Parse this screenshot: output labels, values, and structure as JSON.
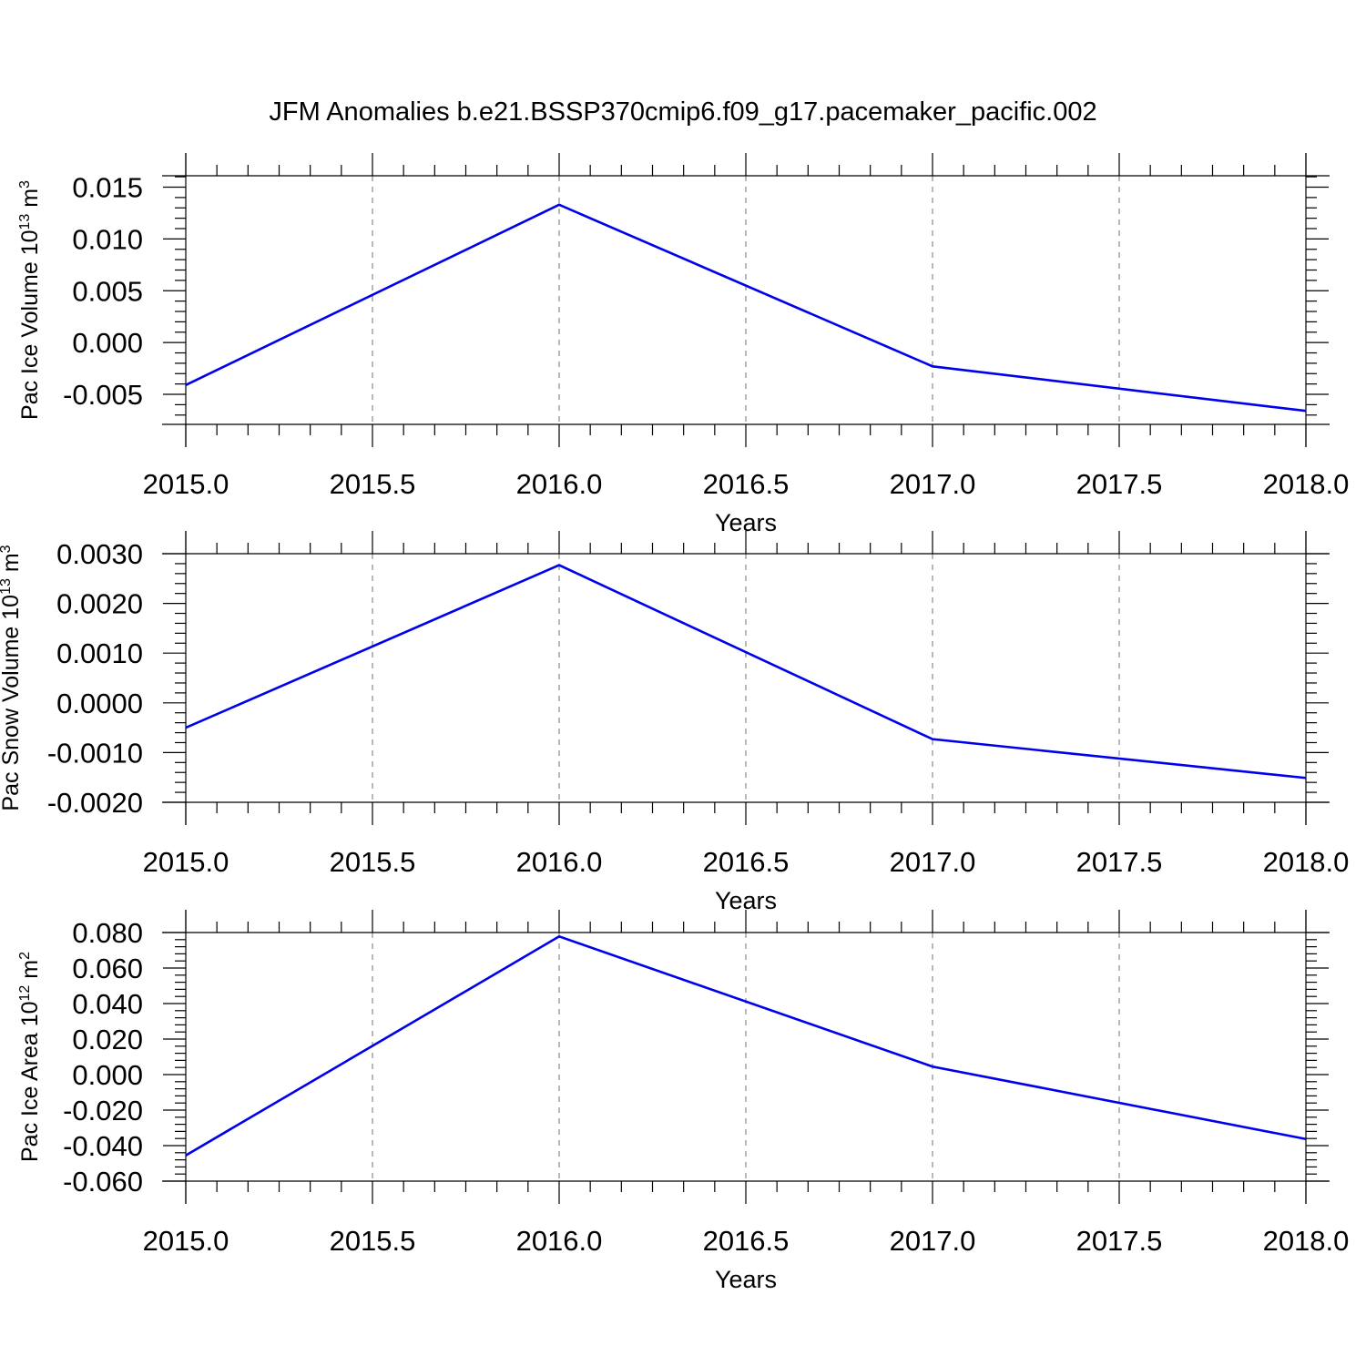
{
  "title": "JFM Anomalies b.e21.BSSP370cmip6.f09_g17.pacemaker_pacific.002",
  "colors": {
    "series": "#0000ee",
    "grid": "#888888",
    "axis": "#000000"
  },
  "chart_data": [
    {
      "type": "line",
      "xlabel": "Years",
      "ylabel": {
        "prefix": "Pac Ice Volume 10",
        "exp": "13",
        "unit": " m",
        "unit_exp": "3"
      },
      "xlim": [
        2015.0,
        2018.0
      ],
      "ylim": [
        -0.0079,
        0.0161
      ],
      "x_ticks": [
        "2015.0",
        "2015.5",
        "2016.0",
        "2016.5",
        "2017.0",
        "2017.5",
        "2018.0"
      ],
      "x_tick_values": [
        2015.0,
        2015.5,
        2016.0,
        2016.5,
        2017.0,
        2017.5,
        2018.0
      ],
      "y_ticks": [
        "0.015",
        "0.010",
        "0.005",
        "0.000",
        "-0.005"
      ],
      "y_tick_values": [
        0.015,
        0.01,
        0.005,
        0.0,
        -0.005
      ],
      "y_minor_step": 0.001,
      "grid": "vertical-dashed",
      "x": [
        2015.0,
        2016.0,
        2017.0,
        2018.0
      ],
      "y": [
        -0.0041,
        0.0133,
        -0.0023,
        -0.0066
      ]
    },
    {
      "type": "line",
      "xlabel": "Years",
      "ylabel": {
        "prefix": "Pac Snow Volume 10",
        "exp": "13",
        "unit": " m",
        "unit_exp": "3"
      },
      "xlim": [
        2015.0,
        2018.0
      ],
      "ylim": [
        -0.002,
        0.003
      ],
      "x_ticks": [
        "2015.0",
        "2015.5",
        "2016.0",
        "2016.5",
        "2017.0",
        "2017.5",
        "2018.0"
      ],
      "x_tick_values": [
        2015.0,
        2015.5,
        2016.0,
        2016.5,
        2017.0,
        2017.5,
        2018.0
      ],
      "y_ticks": [
        "0.0030",
        "0.0020",
        "0.0010",
        "0.0000",
        "-0.0010",
        "-0.0020"
      ],
      "y_tick_values": [
        0.003,
        0.002,
        0.001,
        0.0,
        -0.001,
        -0.002
      ],
      "y_minor_step": 0.0002,
      "grid": "vertical-dashed",
      "x": [
        2015.0,
        2016.0,
        2017.0,
        2018.0
      ],
      "y": [
        -0.0005,
        0.00277,
        -0.00073,
        -0.00151
      ]
    },
    {
      "type": "line",
      "xlabel": "Years",
      "ylabel": {
        "prefix": "Pac Ice Area 10",
        "exp": "12",
        "unit": " m",
        "unit_exp": "2"
      },
      "xlim": [
        2015.0,
        2018.0
      ],
      "ylim": [
        -0.06,
        0.08
      ],
      "x_ticks": [
        "2015.0",
        "2015.5",
        "2016.0",
        "2016.5",
        "2017.0",
        "2017.5",
        "2018.0"
      ],
      "x_tick_values": [
        2015.0,
        2015.5,
        2016.0,
        2016.5,
        2017.0,
        2017.5,
        2018.0
      ],
      "y_ticks": [
        "0.080",
        "0.060",
        "0.040",
        "0.020",
        "0.000",
        "-0.020",
        "-0.040",
        "-0.060"
      ],
      "y_tick_values": [
        0.08,
        0.06,
        0.04,
        0.02,
        0.0,
        -0.02,
        -0.04,
        -0.06
      ],
      "y_minor_step": 0.004,
      "grid": "vertical-dashed",
      "x": [
        2015.0,
        2016.0,
        2017.0,
        2018.0
      ],
      "y": [
        -0.0455,
        0.0778,
        0.0045,
        -0.0363
      ]
    }
  ]
}
